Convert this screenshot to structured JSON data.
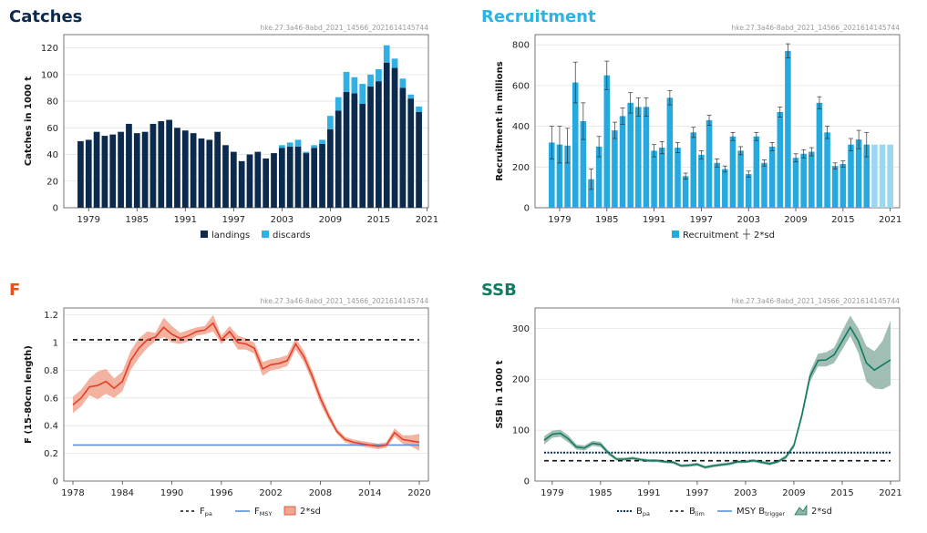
{
  "colors": {
    "catches_title": "#0b2a4e",
    "recruit_title": "#2ab4e4",
    "f_title": "#e8501c",
    "ssb_title": "#137a63",
    "landings": "#0b2a4e",
    "discards": "#30b0e3",
    "recruit": "#25a9df",
    "recruit_proj": "#9ad8f2",
    "f_line": "#e2402a",
    "f_band": "#f2a58f",
    "fmsy": "#5a8fe0",
    "ssb_line": "#137a63",
    "ssb_band": "#8fb3a6",
    "bpa": "#0b2a4e"
  },
  "chart_data": [
    {
      "id": "catches",
      "type": "bar",
      "title": "Catches",
      "code": "hke.27.3a46-8abd_2021_14566_2021614145744",
      "ylabel": "Catches in 1000 t",
      "ylim": [
        0,
        130
      ],
      "yticks": [
        0,
        20,
        40,
        60,
        80,
        100,
        120
      ],
      "xticks": [
        "1979",
        "1985",
        "1991",
        "1997",
        "2003",
        "2009",
        "2015",
        "2021"
      ],
      "x_first": 1978,
      "series": [
        {
          "name": "landings",
          "values": [
            50,
            51,
            57,
            54,
            55,
            57,
            63,
            56,
            57,
            63,
            65,
            66,
            60,
            58,
            56,
            52,
            51,
            57,
            47,
            42,
            35,
            40,
            42,
            37,
            41,
            45,
            46,
            46,
            41,
            45,
            48,
            59,
            73,
            87,
            86,
            78,
            91,
            95,
            109,
            105,
            90,
            82,
            72
          ]
        },
        {
          "name": "discards",
          "values": [
            0,
            0,
            0,
            0,
            0,
            0,
            0,
            0,
            0,
            0,
            0,
            0,
            0,
            0,
            0,
            0,
            0,
            0,
            0,
            0,
            0,
            0,
            0,
            0,
            0,
            2,
            3,
            5,
            1,
            2,
            3,
            10,
            10,
            15,
            12,
            15,
            9,
            9,
            13,
            7,
            7,
            3,
            4
          ]
        }
      ],
      "legend": [
        "landings",
        "discards"
      ]
    },
    {
      "id": "recruitment",
      "type": "bar",
      "title": "Recruitment",
      "code": "hke.27.3a46-8abd_2021_14566_2021614145744",
      "ylabel": "Recruitment in millions",
      "ylim": [
        0,
        850
      ],
      "yticks": [
        0,
        200,
        400,
        600,
        800
      ],
      "xticks": [
        "1979",
        "1985",
        "1991",
        "1997",
        "2003",
        "2009",
        "2015",
        "2021"
      ],
      "x_first": 1978,
      "values": [
        320,
        310,
        305,
        615,
        425,
        140,
        300,
        650,
        380,
        450,
        515,
        495,
        495,
        280,
        295,
        540,
        295,
        155,
        370,
        260,
        430,
        220,
        190,
        350,
        280,
        165,
        350,
        220,
        300,
        470,
        770,
        245,
        265,
        275,
        515,
        370,
        205,
        215,
        310,
        335,
        310,
        310,
        310,
        310
      ],
      "error": [
        80,
        90,
        85,
        100,
        90,
        50,
        50,
        70,
        40,
        40,
        50,
        45,
        45,
        30,
        30,
        35,
        25,
        15,
        25,
        20,
        25,
        20,
        15,
        20,
        20,
        15,
        20,
        15,
        20,
        25,
        35,
        20,
        20,
        20,
        30,
        30,
        15,
        15,
        30,
        45,
        60,
        0,
        0,
        0
      ],
      "projected_from_index": 41,
      "legend": [
        "Recruitment",
        "2*sd"
      ]
    },
    {
      "id": "f",
      "type": "line",
      "title": "F",
      "code": "hke.27.3a46-8abd_2021_14566_2021614145744",
      "ylabel": "F (15-80cm length)",
      "ylim": [
        0,
        1.25
      ],
      "yticks": [
        "0",
        "0.2",
        "0.4",
        "0.6",
        "0.8",
        "1",
        "1.2"
      ],
      "xticks": [
        "1978",
        "1984",
        "1990",
        "1996",
        "2002",
        "2008",
        "2014",
        "2020"
      ],
      "x": [
        1978,
        1979,
        1980,
        1981,
        1982,
        1983,
        1984,
        1985,
        1986,
        1987,
        1988,
        1989,
        1990,
        1991,
        1992,
        1993,
        1994,
        1995,
        1996,
        1997,
        1998,
        1999,
        2000,
        2001,
        2002,
        2003,
        2004,
        2005,
        2006,
        2007,
        2008,
        2009,
        2010,
        2011,
        2012,
        2013,
        2014,
        2015,
        2016,
        2017,
        2018,
        2019,
        2020
      ],
      "values": [
        0.55,
        0.6,
        0.68,
        0.69,
        0.72,
        0.67,
        0.72,
        0.87,
        0.96,
        1.02,
        1.04,
        1.11,
        1.06,
        1.03,
        1.05,
        1.08,
        1.09,
        1.14,
        1.02,
        1.08,
        1.0,
        0.99,
        0.96,
        0.81,
        0.84,
        0.85,
        0.87,
        0.99,
        0.9,
        0.76,
        0.6,
        0.47,
        0.36,
        0.3,
        0.28,
        0.27,
        0.26,
        0.25,
        0.26,
        0.35,
        0.3,
        0.29,
        0.28
      ],
      "band_lower": [
        0.49,
        0.54,
        0.62,
        0.59,
        0.63,
        0.6,
        0.65,
        0.8,
        0.89,
        0.96,
        1.01,
        1.04,
        1.0,
        0.99,
        1.01,
        1.05,
        1.06,
        1.08,
        0.99,
        1.04,
        0.95,
        0.95,
        0.92,
        0.76,
        0.8,
        0.81,
        0.83,
        0.95,
        0.86,
        0.72,
        0.56,
        0.44,
        0.34,
        0.28,
        0.26,
        0.25,
        0.24,
        0.23,
        0.24,
        0.32,
        0.27,
        0.25,
        0.22
      ],
      "band_upper": [
        0.61,
        0.66,
        0.74,
        0.79,
        0.81,
        0.74,
        0.79,
        0.94,
        1.03,
        1.08,
        1.07,
        1.18,
        1.12,
        1.07,
        1.09,
        1.11,
        1.12,
        1.2,
        1.05,
        1.12,
        1.05,
        1.03,
        1.0,
        0.86,
        0.88,
        0.89,
        0.91,
        1.03,
        0.94,
        0.8,
        0.64,
        0.5,
        0.38,
        0.32,
        0.3,
        0.29,
        0.28,
        0.27,
        0.28,
        0.38,
        0.33,
        0.33,
        0.34
      ],
      "fpa": 1.02,
      "fmsy": 0.26,
      "legend": [
        {
          "main": "F",
          "sub": "pa"
        },
        {
          "main": "F",
          "sub": "MSY"
        },
        {
          "main": "2*sd",
          "sub": ""
        }
      ]
    },
    {
      "id": "ssb",
      "type": "line",
      "title": "SSB",
      "code": "hke.27.3a46-8abd_2021_14566_2021614145744",
      "ylabel": "SSB in 1000 t",
      "ylim": [
        0,
        340
      ],
      "yticks": [
        0,
        100,
        200,
        300
      ],
      "xticks": [
        "1979",
        "1985",
        "1991",
        "1997",
        "2003",
        "2009",
        "2015",
        "2021"
      ],
      "x": [
        1978,
        1979,
        1980,
        1981,
        1982,
        1983,
        1984,
        1985,
        1986,
        1987,
        1988,
        1989,
        1990,
        1991,
        1992,
        1993,
        1994,
        1995,
        1996,
        1997,
        1998,
        1999,
        2000,
        2001,
        2002,
        2003,
        2004,
        2005,
        2006,
        2007,
        2008,
        2009,
        2010,
        2011,
        2012,
        2013,
        2014,
        2015,
        2016,
        2017,
        2018,
        2019,
        2020,
        2021
      ],
      "values": [
        80,
        92,
        94,
        83,
        67,
        65,
        74,
        72,
        55,
        43,
        43,
        45,
        42,
        40,
        40,
        38,
        37,
        30,
        31,
        33,
        27,
        30,
        32,
        34,
        38,
        38,
        40,
        37,
        34,
        38,
        47,
        70,
        130,
        205,
        237,
        238,
        248,
        275,
        302,
        275,
        232,
        218,
        228,
        238
      ],
      "band_lower": [
        72,
        85,
        87,
        76,
        62,
        60,
        69,
        67,
        51,
        40,
        40,
        42,
        39,
        37,
        37,
        35,
        34,
        27,
        28,
        30,
        24,
        27,
        29,
        31,
        35,
        35,
        37,
        34,
        31,
        35,
        43,
        65,
        122,
        195,
        225,
        225,
        232,
        258,
        285,
        252,
        195,
        182,
        180,
        188
      ],
      "band_upper": [
        88,
        99,
        101,
        90,
        72,
        70,
        79,
        77,
        59,
        46,
        46,
        48,
        45,
        43,
        43,
        41,
        40,
        33,
        34,
        36,
        30,
        33,
        35,
        37,
        41,
        41,
        43,
        40,
        37,
        41,
        51,
        75,
        138,
        215,
        250,
        253,
        262,
        295,
        325,
        300,
        265,
        255,
        275,
        315
      ],
      "bpa": 56,
      "blim": 40,
      "legend": [
        {
          "main": "B",
          "sub": "pa"
        },
        {
          "main": "B",
          "sub": "lim"
        },
        {
          "main": "MSY B",
          "sub": "trigger"
        },
        {
          "main": "2*sd",
          "sub": ""
        }
      ]
    }
  ]
}
